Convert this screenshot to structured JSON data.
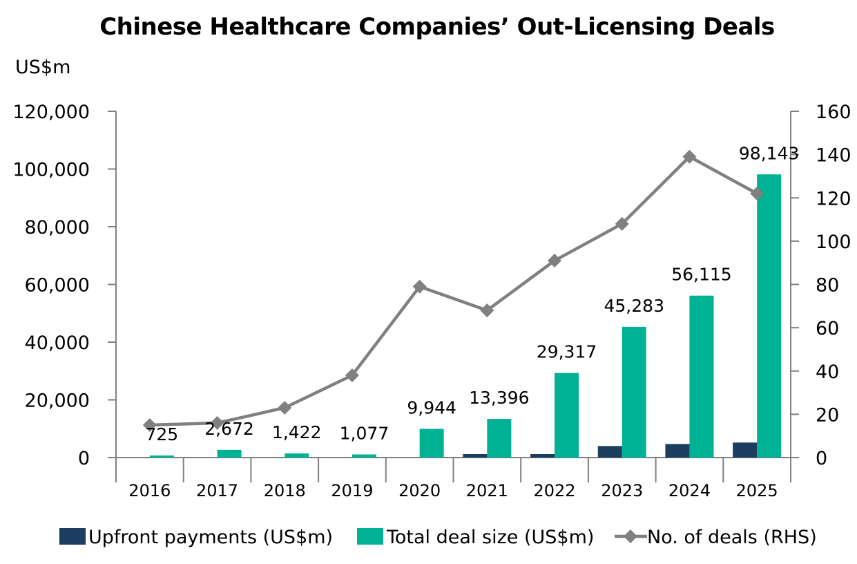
{
  "chart_data": {
    "type": "bar",
    "title": "Chinese Healthcare Companies’ Out-Licensing Deals",
    "y_unit_label": "US$m",
    "categories": [
      "2016",
      "2017",
      "2018",
      "2019",
      "2020",
      "2021",
      "2022",
      "2023",
      "2024",
      "2025"
    ],
    "ylim": [
      0,
      120000
    ],
    "y_ticks": [
      0,
      20000,
      40000,
      60000,
      80000,
      100000,
      120000
    ],
    "y_tick_labels": [
      "0",
      "20,000",
      "40,000",
      "60,000",
      "80,000",
      "100,000",
      "120,000"
    ],
    "y2lim": [
      0,
      160
    ],
    "y2_ticks": [
      0,
      20,
      40,
      60,
      80,
      100,
      120,
      140,
      160
    ],
    "y2_tick_labels": [
      "0",
      "20",
      "40",
      "60",
      "80",
      "100",
      "120",
      "140",
      "160"
    ],
    "series": [
      {
        "name": "Upfront payments (US$m)",
        "kind": "bar",
        "axis": "left",
        "color": "#1b3d5e",
        "values": [
          0,
          0,
          0,
          0,
          0,
          1200,
          1200,
          4000,
          4700,
          5200
        ]
      },
      {
        "name": "Total deal size (US$m)",
        "kind": "bar",
        "axis": "left",
        "color": "#00b294",
        "values": [
          725,
          2672,
          1422,
          1077,
          9944,
          13396,
          29317,
          45283,
          56115,
          98143
        ],
        "labels": [
          "725",
          "2,672",
          "1,422",
          "1,077",
          "9,944",
          "13,396",
          "29,317",
          "45,283",
          "56,115",
          "98,143"
        ]
      },
      {
        "name": "No. of deals (RHS)",
        "kind": "line",
        "axis": "right",
        "color": "#808080",
        "values": [
          15,
          16,
          23,
          38,
          79,
          68,
          91,
          108,
          139,
          122
        ]
      }
    ],
    "grid": false,
    "legend": "bottom"
  }
}
